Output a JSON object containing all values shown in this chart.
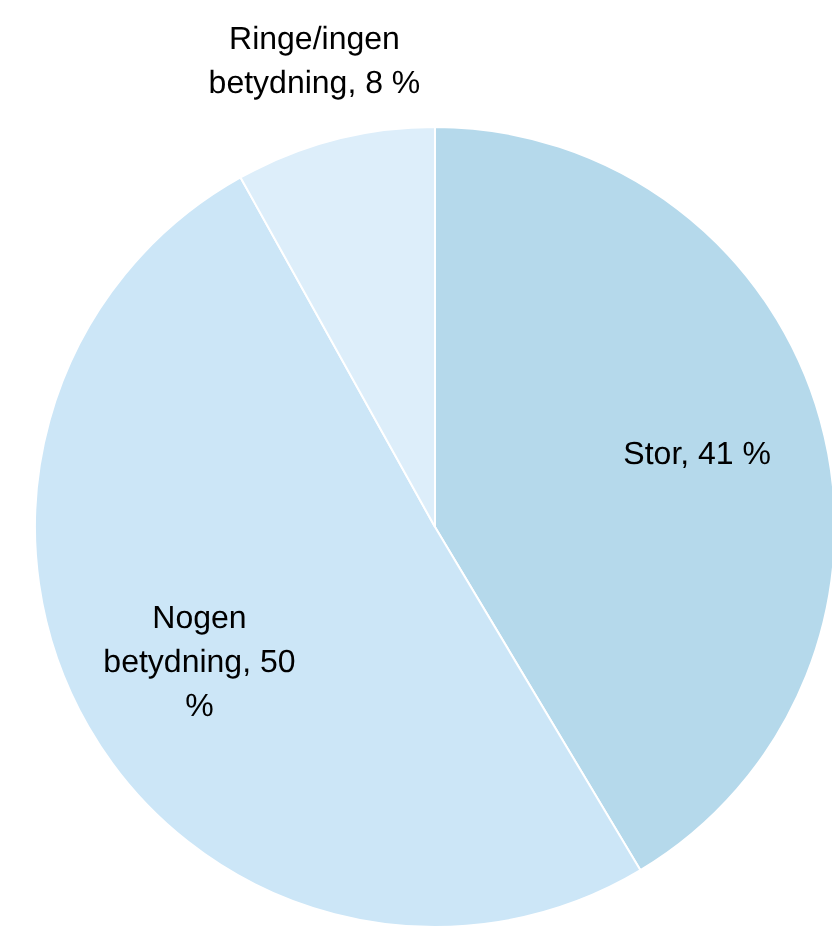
{
  "chart_data": {
    "type": "pie",
    "categories": [
      "Stor",
      "Nogen betydning",
      "Ringe/ingen betydning"
    ],
    "values": [
      41,
      50,
      8
    ],
    "value_labels": [
      "41 %",
      "50 %",
      "8 %"
    ],
    "colors": [
      "#b5d9eb",
      "#cce6f7",
      "#ddeefa"
    ]
  }
}
